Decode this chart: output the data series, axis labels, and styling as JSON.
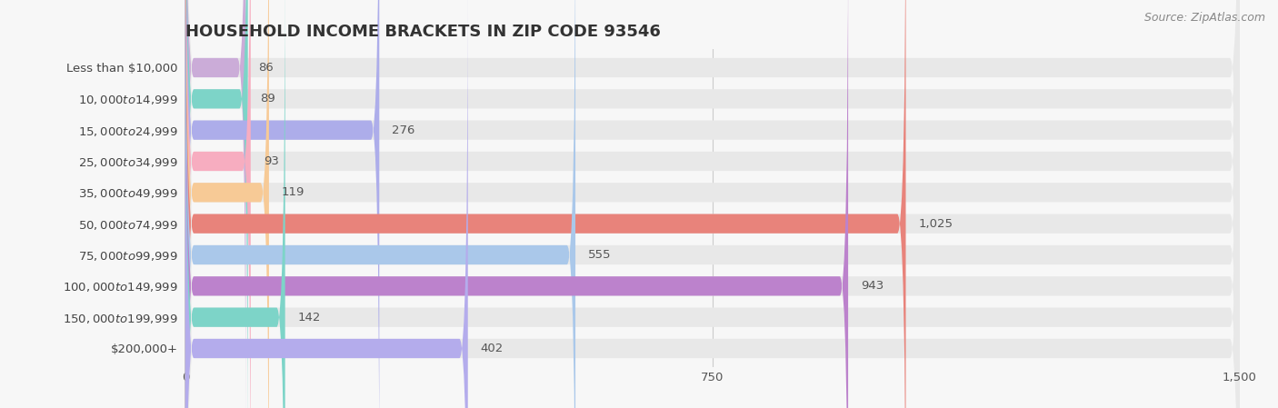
{
  "title": "HOUSEHOLD INCOME BRACKETS IN ZIP CODE 93546",
  "source": "Source: ZipAtlas.com",
  "categories": [
    "Less than $10,000",
    "$10,000 to $14,999",
    "$15,000 to $24,999",
    "$25,000 to $34,999",
    "$35,000 to $49,999",
    "$50,000 to $74,999",
    "$75,000 to $99,999",
    "$100,000 to $149,999",
    "$150,000 to $199,999",
    "$200,000+"
  ],
  "values": [
    86,
    89,
    276,
    93,
    119,
    1025,
    555,
    943,
    142,
    402
  ],
  "colors": [
    "#cbacd8",
    "#7dd4c8",
    "#adadea",
    "#f7adc0",
    "#f7ca96",
    "#e8837b",
    "#aac8ea",
    "#bc82cc",
    "#7dd4c8",
    "#b4acec"
  ],
  "xlim": [
    0,
    1500
  ],
  "xticks": [
    0,
    750,
    1500
  ],
  "background_color": "#f7f7f7",
  "bar_background_color": "#e8e8e8",
  "bar_height": 0.62,
  "title_fontsize": 13,
  "label_fontsize": 9.5,
  "value_fontsize": 9.5,
  "tick_fontsize": 9.5,
  "source_fontsize": 9
}
